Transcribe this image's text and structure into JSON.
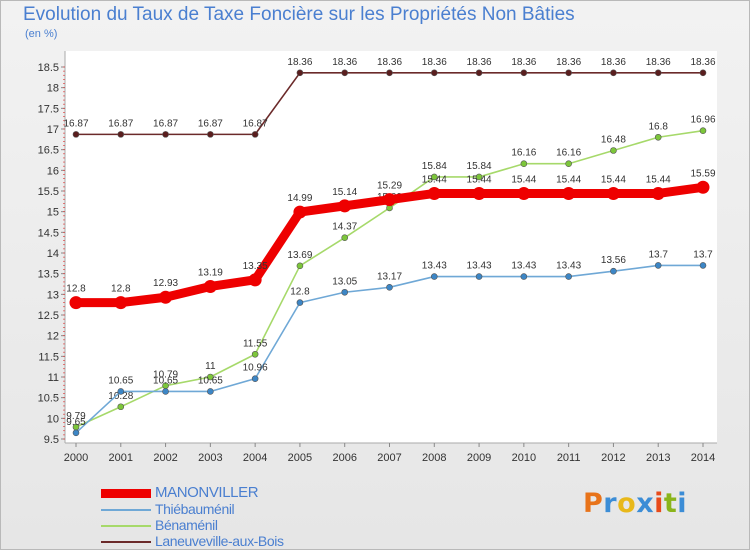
{
  "title": "Evolution du Taux de Taxe Foncière sur les Propriétés Non Bâties",
  "unit_label": "(en %)",
  "logo": {
    "text": "Proxiti",
    "colors": [
      "#e8731a",
      "#3c8dd6",
      "#e8b81a",
      "#3c8dd6",
      "#e84a1a",
      "#8ab41a",
      "#3c8dd6"
    ]
  },
  "chart_data": {
    "type": "line",
    "title": "Evolution du Taux de Taxe Foncière sur les Propriétés Non Bâties",
    "ylabel": "(en %)",
    "xlabel": "",
    "x": [
      "2000",
      "2001",
      "2002",
      "2003",
      "2004",
      "2005",
      "2006",
      "2007",
      "2008",
      "2009",
      "2010",
      "2011",
      "2012",
      "2013",
      "2014"
    ],
    "ylim": [
      9.5,
      18.5
    ],
    "yticks": [
      "9.5",
      "10",
      "10.5",
      "11",
      "11.5",
      "12",
      "12.5",
      "13",
      "13.5",
      "14",
      "14.5",
      "15",
      "15.5",
      "16",
      "16.5",
      "17",
      "17.5",
      "18",
      "18.5"
    ],
    "grid": false,
    "legend_position": "bottom-left",
    "series": [
      {
        "name": "Laneuveville-aux-Bois",
        "color": "#6b2a2a",
        "marker": "#5a1e1e",
        "values": [
          16.87,
          16.87,
          16.87,
          16.87,
          16.87,
          18.36,
          18.36,
          18.36,
          18.36,
          18.36,
          18.36,
          18.36,
          18.36,
          18.36,
          18.36
        ],
        "labels": [
          "16.87",
          "16.87",
          "16.87",
          "16.87",
          "16.87",
          "18.36",
          "18.36",
          "18.36",
          "18.36",
          "18.36",
          "18.36",
          "18.36",
          "18.36",
          "18.36",
          "18.36"
        ]
      },
      {
        "name": "Bénaménil",
        "color": "#a6d96a",
        "marker": "#7cc63a",
        "values": [
          9.79,
          10.28,
          10.79,
          11,
          11.55,
          13.69,
          14.37,
          15.09,
          15.84,
          15.84,
          16.16,
          16.16,
          16.48,
          16.8,
          16.96
        ],
        "labels": [
          "9.79",
          "10.28",
          "10.79",
          "11",
          "11.55",
          "13.69",
          "14.37",
          "15.09",
          "15.84",
          "15.84",
          "16.16",
          "16.16",
          "16.48",
          "16.8",
          "16.96"
        ]
      },
      {
        "name": "Thiébauménil",
        "color": "#6fa8d6",
        "marker": "#3c86c6",
        "values": [
          9.65,
          10.65,
          10.65,
          10.65,
          10.96,
          12.8,
          13.05,
          13.17,
          13.43,
          13.43,
          13.43,
          13.43,
          13.56,
          13.7,
          13.7
        ],
        "labels": [
          "9.65",
          "10.65",
          "10.65",
          "10.65",
          "10.96",
          "12.8",
          "13.05",
          "13.17",
          "13.43",
          "13.43",
          "13.43",
          "13.43",
          "13.56",
          "13.7",
          "13.7"
        ]
      },
      {
        "name": "MANONVILLER",
        "color": "#ee0000",
        "marker": "#ee0000",
        "values": [
          12.8,
          12.8,
          12.93,
          13.19,
          13.35,
          14.99,
          15.14,
          15.29,
          15.44,
          15.44,
          15.44,
          15.44,
          15.44,
          15.44,
          15.59
        ],
        "labels": [
          "12.8",
          "12.8",
          "12.93",
          "13.19",
          "13.35",
          "14.99",
          "15.14",
          "15.29",
          "15.44",
          "15.44",
          "15.44",
          "15.44",
          "15.44",
          "15.44",
          "15.59"
        ]
      }
    ],
    "legend": [
      "MANONVILLER",
      "Thiébauménil",
      "Bénaménil",
      "Laneuveville-aux-Bois"
    ]
  }
}
